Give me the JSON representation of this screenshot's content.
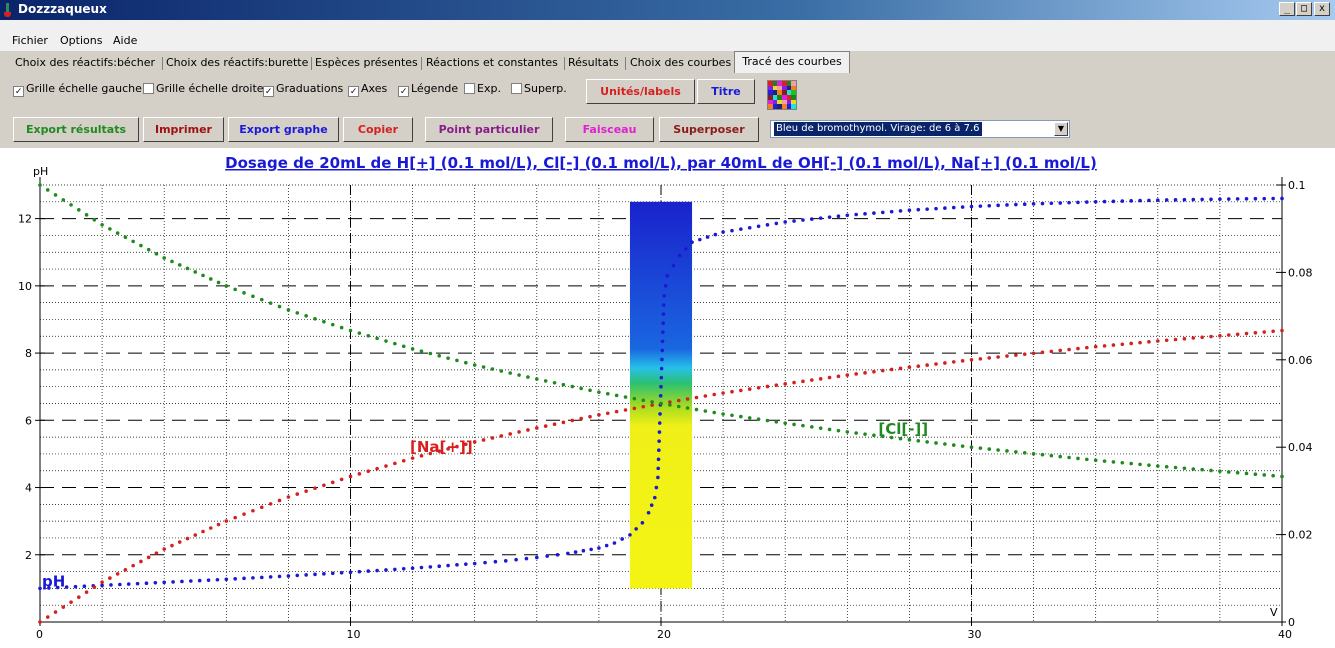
{
  "window": {
    "title": "Dozzzaqueux",
    "btn_min": "_",
    "btn_max": "□",
    "btn_close": "x"
  },
  "menu": [
    "Fichier",
    "Options",
    "Aide"
  ],
  "tabs": [
    "Choix des réactifs:bécher",
    "Choix des réactifs:burette",
    "Espèces présentes",
    "Réactions et constantes",
    "Résultats",
    "Choix des courbes",
    "Tracé des courbes"
  ],
  "active_tab": "Tracé des courbes",
  "options": {
    "grille_gauche": {
      "label": "Grille échelle gauche",
      "checked": true
    },
    "grille_droite": {
      "label": "Grille échelle droite",
      "checked": false
    },
    "graduations": {
      "label": "Graduations",
      "checked": true
    },
    "axes": {
      "label": "Axes",
      "checked": true
    },
    "legende": {
      "label": "Légende",
      "checked": true
    },
    "exp": {
      "label": "Exp.",
      "checked": false
    },
    "superp": {
      "label": "Superp.",
      "checked": false
    }
  },
  "buttons": {
    "units_labels": "Unités/labels",
    "titre": "Titre",
    "export_resultats": "Export résultats",
    "imprimer": "Imprimer",
    "export_graphe": "Export graphe",
    "copier": "Copier",
    "point_particulier": "Point particulier",
    "faisceau": "Faisceau",
    "superposer": "Superposer"
  },
  "colors": {
    "units_labels": "#d62020",
    "titre": "#1a1ad6",
    "export_resultats": "#1f8a1f",
    "imprimer": "#a01010",
    "export_graphe": "#1a1ad6",
    "copier": "#d62020",
    "point_particulier": "#8b1a8b",
    "faisceau": "#e020d0",
    "superposer": "#8b1a1a",
    "title": "#1a1ad6",
    "ph_series": "#1a1ad6",
    "na_series": "#d62020",
    "cl_series": "#1f8a1f"
  },
  "indicator": {
    "selected": "Bleu de bromothymol. Virage: de 6 à 7.6"
  },
  "chart_data": {
    "type": "scatter",
    "title": "Dosage de 20mL de H[+] (0.1 mol/L), Cl[-] (0.1 mol/L),  par 40mL  de OH[-] (0.1 mol/L), Na[+] (0.1 mol/L)",
    "xlabel": "V",
    "ylabel_left": "pH",
    "xlim": [
      0,
      40
    ],
    "ylim_left": [
      0,
      13
    ],
    "ylim_right": [
      0,
      0.1
    ],
    "xticks": [
      "0",
      "10",
      "20",
      "30",
      "40"
    ],
    "yticks_left": [
      "2",
      "4",
      "6",
      "8",
      "10",
      "12"
    ],
    "yticks_right": [
      "0",
      "0.02",
      "0.04",
      "0.06",
      "0.08",
      "0.1"
    ],
    "indicator_zone": {
      "x_min": 19,
      "x_max": 21,
      "ph_min": 1,
      "ph_max": 12.5,
      "virage": [
        6,
        7.6
      ]
    },
    "series": [
      {
        "name": "pH",
        "axis": "left",
        "x": [
          0,
          2,
          4,
          6,
          8,
          10,
          12,
          14,
          15,
          16,
          17,
          18,
          18.5,
          19,
          19.4,
          19.6,
          19.8,
          19.9,
          20,
          20.1,
          20.2,
          20.4,
          20.6,
          21,
          22,
          24,
          26,
          28,
          30,
          32,
          34,
          36,
          38,
          40
        ],
        "values": [
          1.0,
          1.09,
          1.18,
          1.27,
          1.37,
          1.48,
          1.6,
          1.74,
          1.82,
          1.92,
          2.04,
          2.2,
          2.35,
          2.59,
          2.95,
          3.25,
          3.7,
          4.3,
          7.0,
          9.7,
          10.3,
          10.6,
          10.9,
          11.3,
          11.6,
          11.9,
          12.1,
          12.25,
          12.36,
          12.44,
          12.5,
          12.55,
          12.58,
          12.6
        ]
      },
      {
        "name": "[Na[+]]",
        "axis": "right",
        "x": [
          0,
          2,
          4,
          6,
          8,
          10,
          12,
          14,
          16,
          18,
          20,
          22,
          24,
          26,
          28,
          30,
          32,
          34,
          36,
          38,
          40
        ],
        "values": [
          0,
          0.0091,
          0.0167,
          0.0231,
          0.0286,
          0.0333,
          0.0375,
          0.0412,
          0.0444,
          0.0474,
          0.05,
          0.0524,
          0.0545,
          0.0565,
          0.0583,
          0.06,
          0.0615,
          0.063,
          0.0643,
          0.0655,
          0.0667
        ]
      },
      {
        "name": "[Cl[-]]",
        "axis": "right",
        "x": [
          0,
          2,
          4,
          6,
          8,
          10,
          12,
          14,
          16,
          18,
          20,
          22,
          24,
          26,
          28,
          30,
          32,
          34,
          36,
          38,
          40
        ],
        "values": [
          0.1,
          0.0909,
          0.0833,
          0.0769,
          0.0714,
          0.0667,
          0.0625,
          0.0588,
          0.0556,
          0.0526,
          0.05,
          0.0476,
          0.0455,
          0.0435,
          0.0417,
          0.04,
          0.0385,
          0.037,
          0.0357,
          0.0345,
          0.0333
        ]
      }
    ]
  }
}
